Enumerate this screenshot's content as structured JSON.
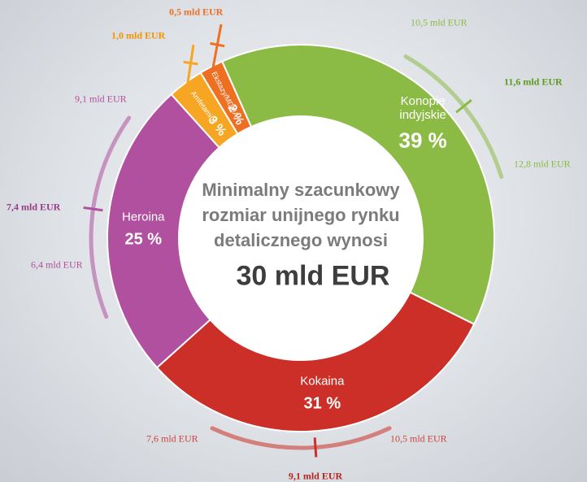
{
  "chart_data": {
    "type": "donut",
    "center_text": "Minimalny szacunkowy rozmiar unijnego rynku detalicznego wynosi",
    "center_value": "30 mld EUR",
    "categories": [
      "Konopie indyjskie",
      "Kokaina",
      "Heroina",
      "Amfetaminy",
      "Ekstazy/MDMA"
    ],
    "values": [
      39,
      31,
      25,
      3,
      2
    ],
    "value_labels": [
      "39 %",
      "31 %",
      "25 %",
      "3 %",
      "2 %"
    ],
    "colors": [
      "#8cbb45",
      "#cc2f27",
      "#b0509e",
      "#f6a623",
      "#ef6f22"
    ],
    "estimates": [
      {
        "mid": "11,6 mld EUR",
        "low": "10,5 mld EUR",
        "high": "12,8 mld EUR"
      },
      {
        "mid": "9,1 mld EUR",
        "low": "7,6 mld EUR",
        "high": "10,5 mld EUR"
      },
      {
        "mid": "7,4 mld EUR",
        "low": "6,4 mld EUR",
        "high": "9,1 mld EUR"
      },
      {
        "mid": "1,0 mld EUR"
      },
      {
        "mid": "0,5 mld EUR"
      }
    ]
  }
}
